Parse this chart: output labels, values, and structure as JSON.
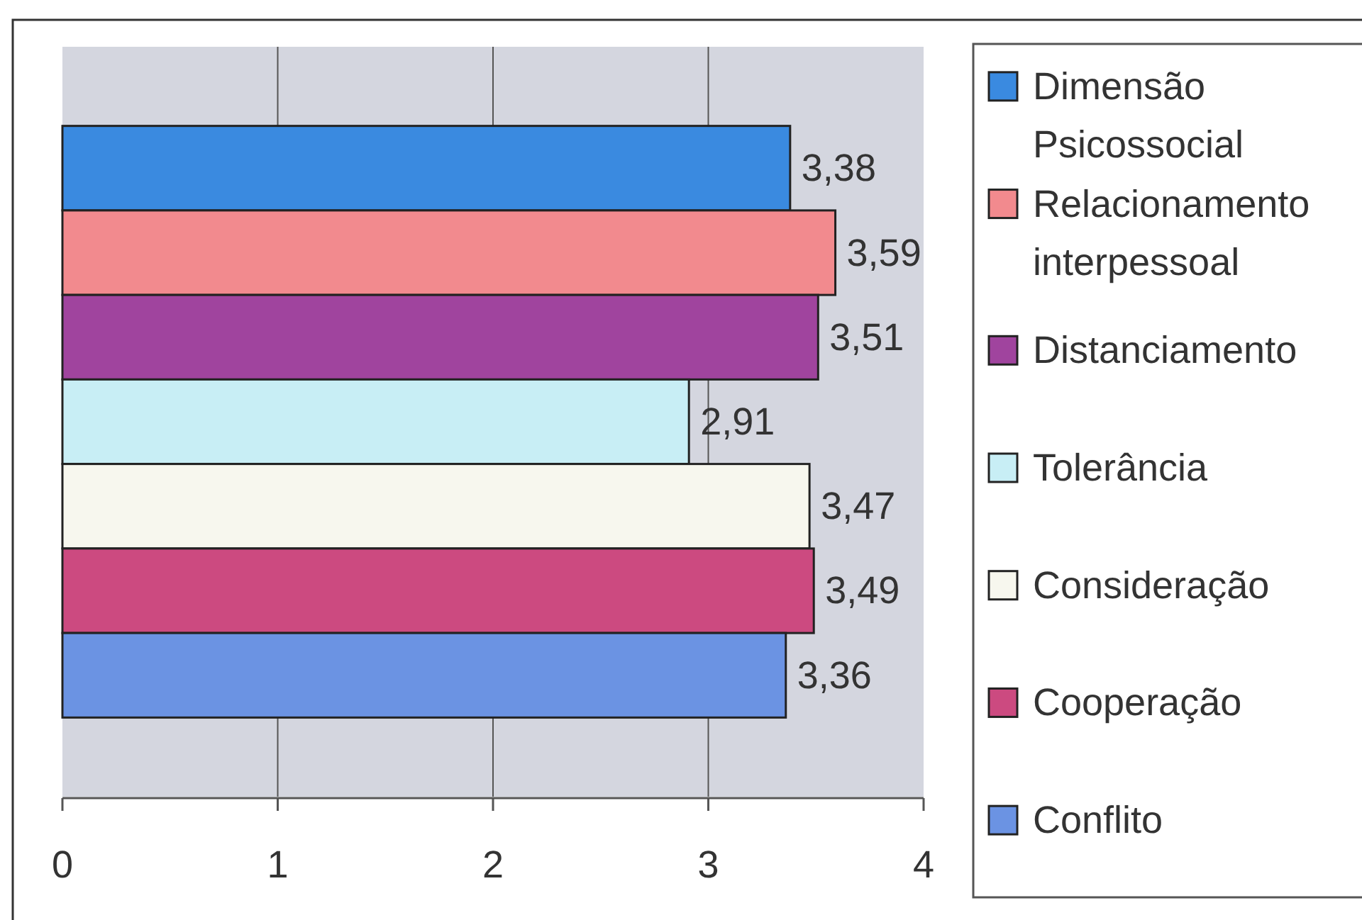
{
  "chart_data": {
    "type": "bar",
    "orientation": "horizontal",
    "categories": [
      null
    ],
    "series": [
      {
        "name": "Dimensão Psicossocial",
        "color": "#3a8ae0",
        "values": [
          3.38
        ],
        "value_labels": [
          "3,38"
        ]
      },
      {
        "name": "Relacionamento interpessoal",
        "color": "#f28a8e",
        "values": [
          3.59
        ],
        "value_labels": [
          "3,59"
        ]
      },
      {
        "name": "Distanciamento",
        "color": "#a0449e",
        "values": [
          3.51
        ],
        "value_labels": [
          "3,51"
        ]
      },
      {
        "name": "Tolerância",
        "color": "#c8eef5",
        "values": [
          2.91
        ],
        "value_labels": [
          "2,91"
        ]
      },
      {
        "name": "Consideração",
        "color": "#f7f7ee",
        "values": [
          3.47
        ],
        "value_labels": [
          "3,47"
        ]
      },
      {
        "name": "Cooperação",
        "color": "#cc4a80",
        "values": [
          3.49
        ],
        "value_labels": [
          "3,49"
        ]
      },
      {
        "name": "Conflito",
        "color": "#6b93e3",
        "values": [
          3.36
        ],
        "value_labels": [
          "3,36"
        ]
      }
    ],
    "xlim": [
      0,
      4
    ],
    "xticks": [
      0,
      1,
      2,
      3,
      4
    ],
    "grid": "x",
    "legend": "right"
  }
}
